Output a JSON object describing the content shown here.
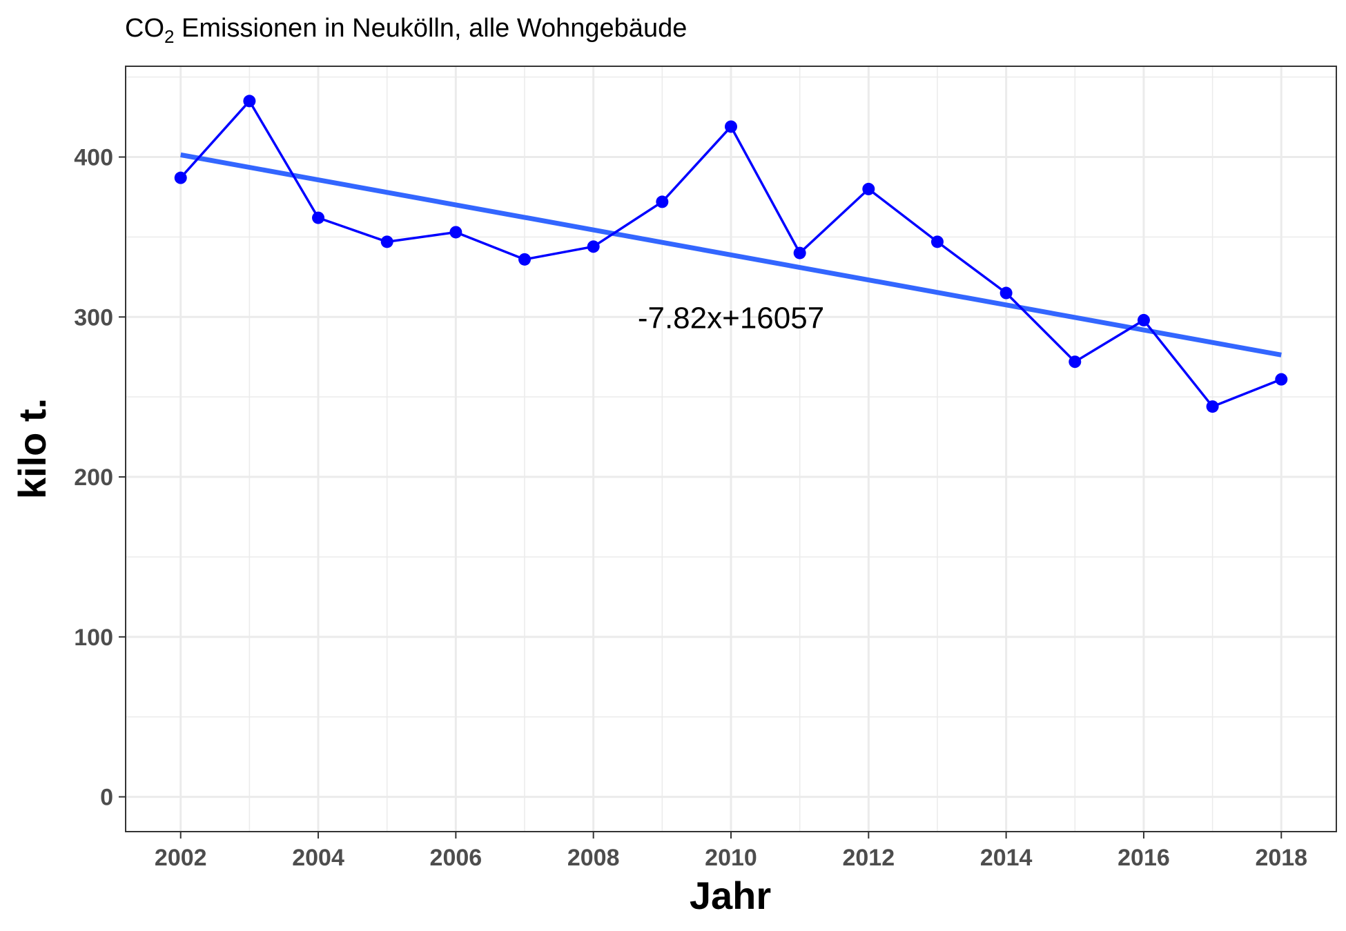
{
  "chart_data": {
    "type": "line",
    "title": {
      "prefix": "CO",
      "subscript": "2",
      "rest": " Emissionen in Neukölln, alle Wohngebäude"
    },
    "xlabel": "Jahr",
    "ylabel": "kilo t.",
    "x": [
      2002,
      2003,
      2004,
      2005,
      2006,
      2007,
      2008,
      2009,
      2010,
      2011,
      2012,
      2013,
      2014,
      2015,
      2016,
      2017,
      2018
    ],
    "series": [
      {
        "values": [
          387,
          435,
          362,
          347,
          353,
          336,
          344,
          372,
          419,
          340,
          380,
          347,
          315,
          272,
          298,
          244,
          261
        ],
        "color": "#0000ff"
      }
    ],
    "trendline": {
      "slope": -7.82,
      "intercept": 16057,
      "label": "-7.82x+16057",
      "color": "#3366ff",
      "label_position": {
        "x": 2010,
        "y": 300
      }
    },
    "x_ticks": [
      2002,
      2004,
      2006,
      2008,
      2010,
      2012,
      2014,
      2016,
      2018
    ],
    "y_ticks": [
      0,
      100,
      200,
      300,
      400
    ],
    "xlim": [
      2001.2,
      2018.8
    ],
    "ylim": [
      -21.75,
      456.75
    ],
    "grid": true,
    "legend": "none"
  }
}
